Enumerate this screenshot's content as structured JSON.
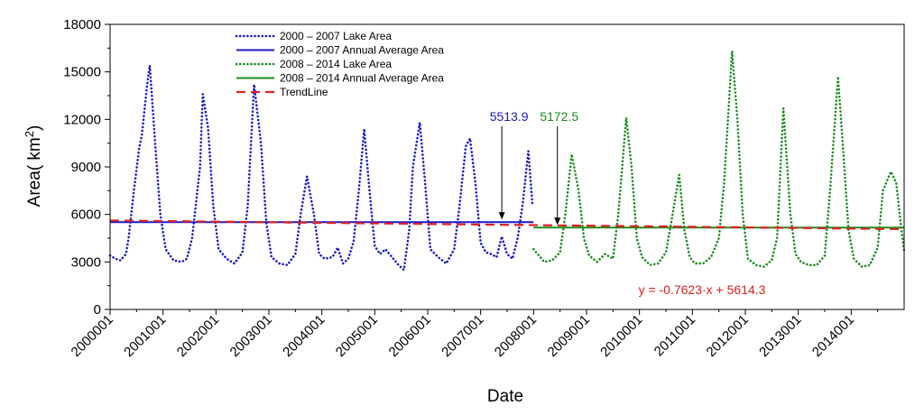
{
  "chart_data": {
    "type": "line",
    "xlabel": "Date",
    "ylabel": "Area( km²)",
    "ylabel_base": "Area( km",
    "ylabel_sup": "2",
    "ylabel_end": ")",
    "xlim": [
      2000,
      2015
    ],
    "ylim": [
      0,
      18000
    ],
    "xticks": [
      2000,
      2001,
      2002,
      2003,
      2004,
      2005,
      2006,
      2007,
      2008,
      2009,
      2010,
      2011,
      2012,
      2013,
      2014
    ],
    "xtick_labels": [
      "2000001",
      "2001001",
      "2002001",
      "2003001",
      "2004001",
      "2005001",
      "2006001",
      "2007001",
      "2008001",
      "2009001",
      "2010001",
      "2011001",
      "2012001",
      "2013001",
      "2014001"
    ],
    "yticks": [
      0,
      3000,
      6000,
      9000,
      12000,
      15000,
      18000
    ],
    "ytick_labels": [
      "0",
      "3000",
      "6000",
      "9000",
      "12000",
      "15000",
      "18000"
    ],
    "legend_position": "top-left",
    "series": [
      {
        "name": "2000 – 2007 Lake Area",
        "color": "#1a1acc",
        "style": "dotted",
        "x": [
          2000.0,
          2000.1,
          2000.2,
          2000.3,
          2000.35,
          2000.45,
          2000.55,
          2000.6,
          2000.7,
          2000.75,
          2000.85,
          2000.95,
          2001.05,
          2001.2,
          2001.35,
          2001.45,
          2001.55,
          2001.7,
          2001.75,
          2001.85,
          2001.95,
          2002.05,
          2002.2,
          2002.35,
          2002.5,
          2002.6,
          2002.72,
          2002.85,
          2002.95,
          2003.05,
          2003.2,
          2003.35,
          2003.5,
          2003.6,
          2003.72,
          2003.85,
          2003.95,
          2004.05,
          2004.2,
          2004.3,
          2004.4,
          2004.5,
          2004.6,
          2004.7,
          2004.8,
          2004.9,
          2005.0,
          2005.1,
          2005.2,
          2005.35,
          2005.45,
          2005.55,
          2005.65,
          2005.72,
          2005.85,
          2005.95,
          2006.05,
          2006.2,
          2006.35,
          2006.5,
          2006.6,
          2006.72,
          2006.8,
          2006.9,
          2007.0,
          2007.1,
          2007.2,
          2007.3,
          2007.4,
          2007.5,
          2007.6,
          2007.7,
          2007.8,
          2007.9,
          2007.98
        ],
        "y": [
          3400,
          3200,
          3100,
          3500,
          4500,
          7500,
          10200,
          11000,
          14200,
          15400,
          10500,
          6000,
          3800,
          3100,
          3000,
          3200,
          4500,
          9000,
          13600,
          11500,
          6500,
          3800,
          3200,
          2900,
          3600,
          6500,
          14200,
          10500,
          5500,
          3300,
          2900,
          2800,
          3500,
          6000,
          8400,
          6000,
          3500,
          3200,
          3300,
          3900,
          2900,
          3200,
          4300,
          7500,
          11400,
          7500,
          4000,
          3500,
          3800,
          3200,
          2800,
          2500,
          5000,
          9000,
          11800,
          8000,
          3800,
          3300,
          2900,
          3800,
          6500,
          10300,
          10800,
          8000,
          4200,
          3600,
          3500,
          3300,
          4600,
          3500,
          3200,
          4500,
          6800,
          10000,
          6500
        ]
      },
      {
        "name": "2000 – 2007 Annual Average Area",
        "color": "#1a1acc",
        "style": "solid",
        "x": [
          2000.0,
          2008.0
        ],
        "y": [
          5513.9,
          5513.9
        ]
      },
      {
        "name": "2008 – 2014  Lake Area",
        "color": "#1a8f1a",
        "style": "dotted",
        "x": [
          2008.0,
          2008.1,
          2008.2,
          2008.35,
          2008.5,
          2008.6,
          2008.72,
          2008.85,
          2008.95,
          2009.05,
          2009.2,
          2009.35,
          2009.5,
          2009.6,
          2009.75,
          2009.85,
          2009.95,
          2010.05,
          2010.2,
          2010.35,
          2010.5,
          2010.6,
          2010.75,
          2010.85,
          2010.95,
          2011.05,
          2011.2,
          2011.35,
          2011.5,
          2011.6,
          2011.75,
          2011.85,
          2011.95,
          2012.05,
          2012.2,
          2012.35,
          2012.5,
          2012.6,
          2012.72,
          2012.85,
          2012.95,
          2013.05,
          2013.2,
          2013.35,
          2013.5,
          2013.6,
          2013.75,
          2013.85,
          2013.95,
          2014.05,
          2014.2,
          2014.35,
          2014.5,
          2014.6,
          2014.75,
          2014.85,
          2014.95,
          2015.0
        ],
        "y": [
          3800,
          3400,
          3000,
          3100,
          3600,
          6000,
          9800,
          7500,
          4500,
          3400,
          3000,
          3500,
          3200,
          6000,
          12100,
          9000,
          4500,
          3300,
          2800,
          2900,
          3600,
          5500,
          8500,
          5000,
          3300,
          2900,
          2900,
          3300,
          4500,
          8000,
          16300,
          12000,
          6000,
          3200,
          2800,
          2700,
          3100,
          4500,
          12700,
          6000,
          3500,
          3000,
          2800,
          2800,
          3400,
          7500,
          14700,
          10000,
          5000,
          3200,
          2700,
          2800,
          3900,
          7500,
          8700,
          8000,
          5000,
          3700
        ]
      },
      {
        "name": "2008 – 2014  Annual Average Area",
        "color": "#1a8f1a",
        "style": "solid",
        "x": [
          2008.0,
          2015.0
        ],
        "y": [
          5172.5,
          5172.5
        ]
      },
      {
        "name": "TrendLine",
        "color": "#e02020",
        "style": "dashed",
        "x": [
          2000.0,
          2015.0
        ],
        "y": [
          5614.3,
          5070.0
        ]
      }
    ],
    "annotations": [
      {
        "text": "5513.9",
        "color": "#1a1acc",
        "x": 2007.4,
        "y": 5513.9
      },
      {
        "text": "5172.5",
        "color": "#1a8f1a",
        "x": 2008.45,
        "y": 5172.5
      },
      {
        "text": "y = -0.7623·x + 5614.3",
        "color": "#e02020"
      }
    ]
  }
}
